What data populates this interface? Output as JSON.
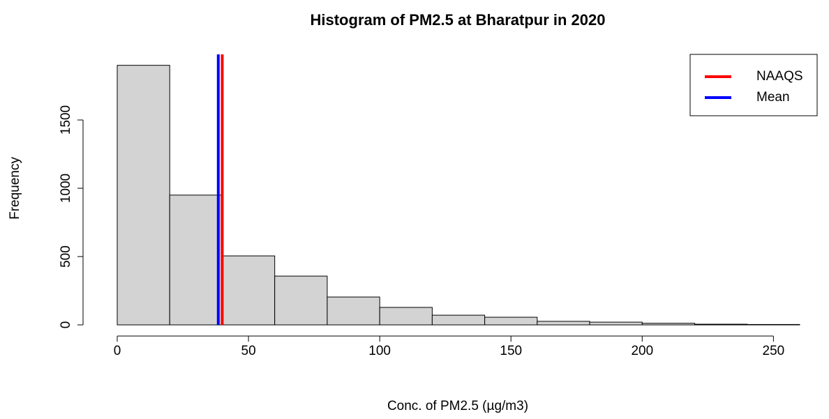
{
  "chart_data": {
    "type": "histogram",
    "title": "Histogram of PM2.5 at Bharatpur in 2020",
    "x_label": "Conc. of PM2.5 (µg/m3)",
    "y_label": "Frequency",
    "bins": [
      0,
      20,
      40,
      60,
      80,
      100,
      120,
      140,
      160,
      180,
      200,
      220,
      240,
      260
    ],
    "counts": [
      1900,
      950,
      505,
      357,
      204,
      128,
      71,
      56,
      26,
      20,
      12,
      5,
      3
    ],
    "color": "#d3d3d3",
    "xlim": [
      0,
      260
    ],
    "ylim": [
      0,
      1980
    ],
    "xticks": [
      0,
      50,
      100,
      150,
      200,
      250
    ],
    "yticks": [
      0,
      500,
      1000,
      1500
    ],
    "series": [
      {
        "name": "NAAQS",
        "color": "#ff0000",
        "values": [
          40
        ]
      },
      {
        "name": "Mean",
        "color": "#0000ff",
        "values": [
          38.5
        ]
      }
    ],
    "legend": "top-right"
  }
}
